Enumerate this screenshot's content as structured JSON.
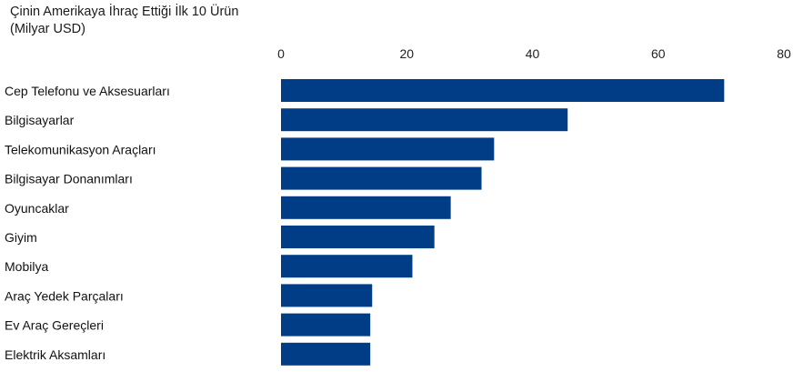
{
  "chart_data": {
    "type": "bar",
    "orientation": "horizontal",
    "title": "Çinin Amerikaya İhraç Ettiği İlk 10 Ürün",
    "subtitle": "(Milyar USD)",
    "xlim": [
      0,
      80
    ],
    "xticks": [
      0,
      20,
      40,
      60,
      80
    ],
    "axis_position": "top",
    "grid": false,
    "legend": "none",
    "bar_color": "#003d87",
    "categories": [
      "Cep Telefonu ve Aksesuarları",
      "Bilgisayarlar",
      "Telekomunikasyon Araçları",
      "Bilgisayar Donanımları",
      "Oyuncaklar",
      "Giyim",
      "Mobilya",
      "Araç Yedek Parçaları",
      "Ev Araç Gereçleri",
      "Elektrik Aksamları"
    ],
    "values": [
      70.5,
      45.6,
      33.9,
      31.9,
      27.0,
      24.4,
      20.9,
      14.5,
      14.2,
      14.2
    ]
  }
}
